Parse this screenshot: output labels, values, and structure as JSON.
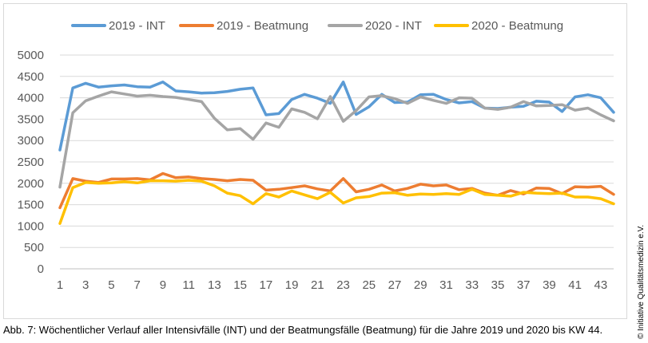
{
  "caption": "Abb. 7: Wöchentlicher Verlauf aller Intensivfälle (INT) und der Beatmungsfälle (Beatmung) für die Jahre 2019 und 2020 bis KW 44.",
  "credit": "© Initiative Qualitätsmedizin e.V.",
  "chart_data": {
    "type": "line",
    "title": "",
    "xlabel": "",
    "ylabel": "",
    "ylim": [
      0,
      5000
    ],
    "yticks": [
      0,
      500,
      1000,
      1500,
      2000,
      2500,
      3000,
      3500,
      4000,
      4500,
      5000
    ],
    "ytick_labels": [
      "0",
      "500",
      "1000",
      "1500",
      "2000",
      "2500",
      "3000",
      "3500",
      "4000",
      "4500",
      "5000"
    ],
    "x": [
      1,
      2,
      3,
      4,
      5,
      6,
      7,
      8,
      9,
      10,
      11,
      12,
      13,
      14,
      15,
      16,
      17,
      18,
      19,
      20,
      21,
      22,
      23,
      24,
      25,
      26,
      27,
      28,
      29,
      30,
      31,
      32,
      33,
      34,
      35,
      36,
      37,
      38,
      39,
      40,
      41,
      42,
      43,
      44
    ],
    "xtick_labels": [
      "1",
      "3",
      "5",
      "7",
      "9",
      "11",
      "13",
      "15",
      "17",
      "19",
      "21",
      "23",
      "25",
      "27",
      "29",
      "31",
      "33",
      "35",
      "37",
      "39",
      "41",
      "43"
    ],
    "grid": "horizontal",
    "legend_position": "top",
    "series": [
      {
        "name": "2019 - INT",
        "color": "#5b9bd5",
        "values": [
          2780,
          4230,
          4340,
          4250,
          4280,
          4300,
          4260,
          4250,
          4370,
          4160,
          4140,
          4110,
          4120,
          4150,
          4200,
          4230,
          3600,
          3630,
          3960,
          4080,
          3990,
          3870,
          4370,
          3610,
          3790,
          4080,
          3890,
          3900,
          4070,
          4080,
          3960,
          3880,
          3910,
          3760,
          3750,
          3780,
          3800,
          3920,
          3900,
          3680,
          4020,
          4070,
          4000,
          3660
        ]
      },
      {
        "name": "2019 - Beatmung",
        "color": "#ed7d31",
        "values": [
          1430,
          2110,
          2050,
          2020,
          2100,
          2100,
          2110,
          2080,
          2230,
          2130,
          2150,
          2110,
          2090,
          2060,
          2090,
          2070,
          1840,
          1860,
          1900,
          1940,
          1870,
          1820,
          2110,
          1800,
          1860,
          1960,
          1820,
          1880,
          1980,
          1940,
          1960,
          1850,
          1880,
          1770,
          1720,
          1830,
          1750,
          1890,
          1880,
          1760,
          1920,
          1910,
          1930,
          1740
        ]
      },
      {
        "name": "2020 - INT",
        "color": "#a5a5a5",
        "values": [
          1910,
          3650,
          3930,
          4040,
          4140,
          4090,
          4040,
          4060,
          4030,
          4010,
          3960,
          3910,
          3520,
          3250,
          3280,
          3030,
          3410,
          3310,
          3740,
          3660,
          3510,
          4030,
          3450,
          3700,
          4020,
          4050,
          3980,
          3870,
          4020,
          3940,
          3870,
          4000,
          3990,
          3760,
          3730,
          3780,
          3910,
          3810,
          3820,
          3840,
          3710,
          3760,
          3600,
          3460
        ]
      },
      {
        "name": "2020 - Beatmung",
        "color": "#ffc000",
        "values": [
          1060,
          1900,
          2020,
          2000,
          2010,
          2040,
          2010,
          2060,
          2060,
          2050,
          2070,
          2050,
          1940,
          1770,
          1710,
          1520,
          1760,
          1680,
          1820,
          1730,
          1640,
          1790,
          1540,
          1660,
          1690,
          1770,
          1780,
          1720,
          1750,
          1740,
          1760,
          1740,
          1860,
          1740,
          1720,
          1700,
          1790,
          1770,
          1760,
          1770,
          1680,
          1680,
          1640,
          1520
        ]
      }
    ]
  }
}
